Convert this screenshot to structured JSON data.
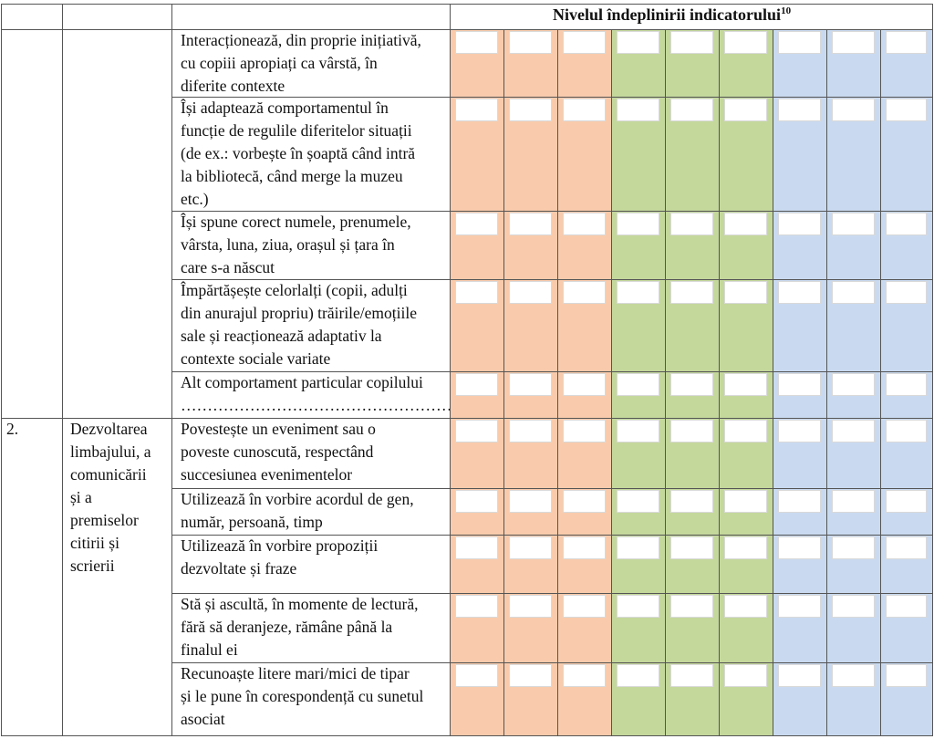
{
  "header": {
    "title": "Nivelul îndeplinirii indicatorului",
    "footnote": "10"
  },
  "colors": {
    "orange": "#f9cbac",
    "green": "#c4d89c",
    "blue": "#c9daf0"
  },
  "sections": [
    {
      "number": "",
      "domain": ""
    },
    {
      "number": "2.",
      "domain": "Dezvoltarea\nlimbajului, a\ncomunicării\nși a\npremiselor\ncitirii și\nscrierii"
    }
  ],
  "indicators": [
    "Interacționează, din proprie inițiativă,\ncu copiii apropiați ca vârstă, în\ndiferite contexte",
    "Își adaptează comportamentul în\nfuncție de regulile diferitelor situații\n(de ex.: vorbește în șoaptă când intră\nla bibliotecă, când merge la muzeu\netc.)",
    "Își spune corect numele, prenumele,\nvârsta, luna, ziua, orașul și țara în\ncare  s-a născut",
    "Împărtășește celorlalți (copii, adulți\ndin anurajul propriu) trăirile/emoțiile\nsale și reacționează adaptativ la\ncontexte sociale variate",
    "Alt comportament particular copilului\n…………………………………………….",
    "Povestește un eveniment sau o\npoveste cunoscută, respectând\nsuccesiunea evenimentelor",
    "Utilizează în vorbire acordul de gen,\nnumăr, persoană, timp",
    "Utilizează în vorbire propoziții\ndezvoltate și fraze",
    "Stă și ascultă, în momente de lectură,\nfără să deranjeze, rămâne până la\nfinalul ei",
    "Recunoaște litere mari/mici de tipar\nși le pune în corespondență cu sunetul\nasociat"
  ]
}
